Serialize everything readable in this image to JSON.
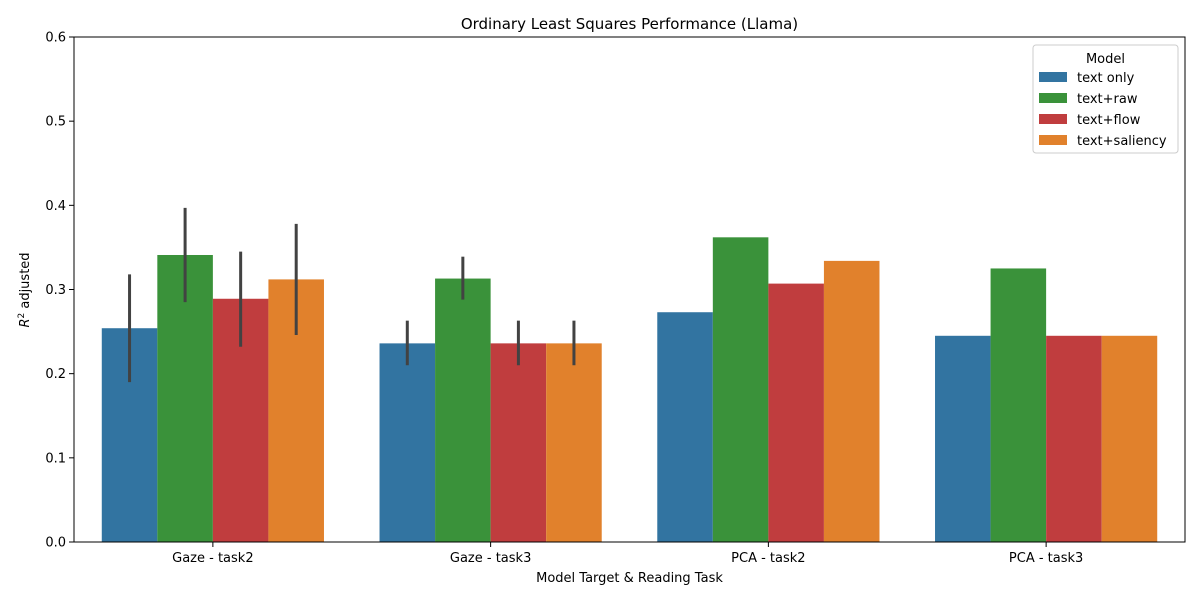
{
  "chart_data": {
    "type": "bar",
    "title": "Ordinary Least Squares Performance (Llama)",
    "xlabel": "Model Target & Reading Task",
    "ylabel": "R² adjusted",
    "ylim": [
      0,
      0.6
    ],
    "yticks": [
      "0.0",
      "0.1",
      "0.2",
      "0.3",
      "0.4",
      "0.5",
      "0.6"
    ],
    "categories": [
      "Gaze - task2",
      "Gaze - task3",
      "PCA - task2",
      "PCA - task3"
    ],
    "legend": {
      "title": "Model",
      "placement": "top-right"
    },
    "series": [
      {
        "name": "text only",
        "color": "#3274a1",
        "values": [
          0.254,
          0.236,
          0.273,
          0.245
        ],
        "error_low": [
          0.19,
          0.21,
          null,
          null
        ],
        "error_high": [
          0.318,
          0.263,
          null,
          null
        ]
      },
      {
        "name": "text+raw",
        "color": "#3a923a",
        "values": [
          0.341,
          0.313,
          0.362,
          0.325
        ],
        "error_low": [
          0.285,
          0.288,
          null,
          null
        ],
        "error_high": [
          0.397,
          0.339,
          null,
          null
        ]
      },
      {
        "name": "text+flow",
        "color": "#c03d3e",
        "values": [
          0.289,
          0.236,
          0.307,
          0.245
        ],
        "error_low": [
          0.232,
          0.21,
          null,
          null
        ],
        "error_high": [
          0.345,
          0.263,
          null,
          null
        ]
      },
      {
        "name": "text+saliency",
        "color": "#e1812c",
        "values": [
          0.312,
          0.236,
          0.334,
          0.245
        ],
        "error_low": [
          0.246,
          0.21,
          null,
          null
        ],
        "error_high": [
          0.378,
          0.263,
          null,
          null
        ]
      }
    ],
    "grid": false
  }
}
